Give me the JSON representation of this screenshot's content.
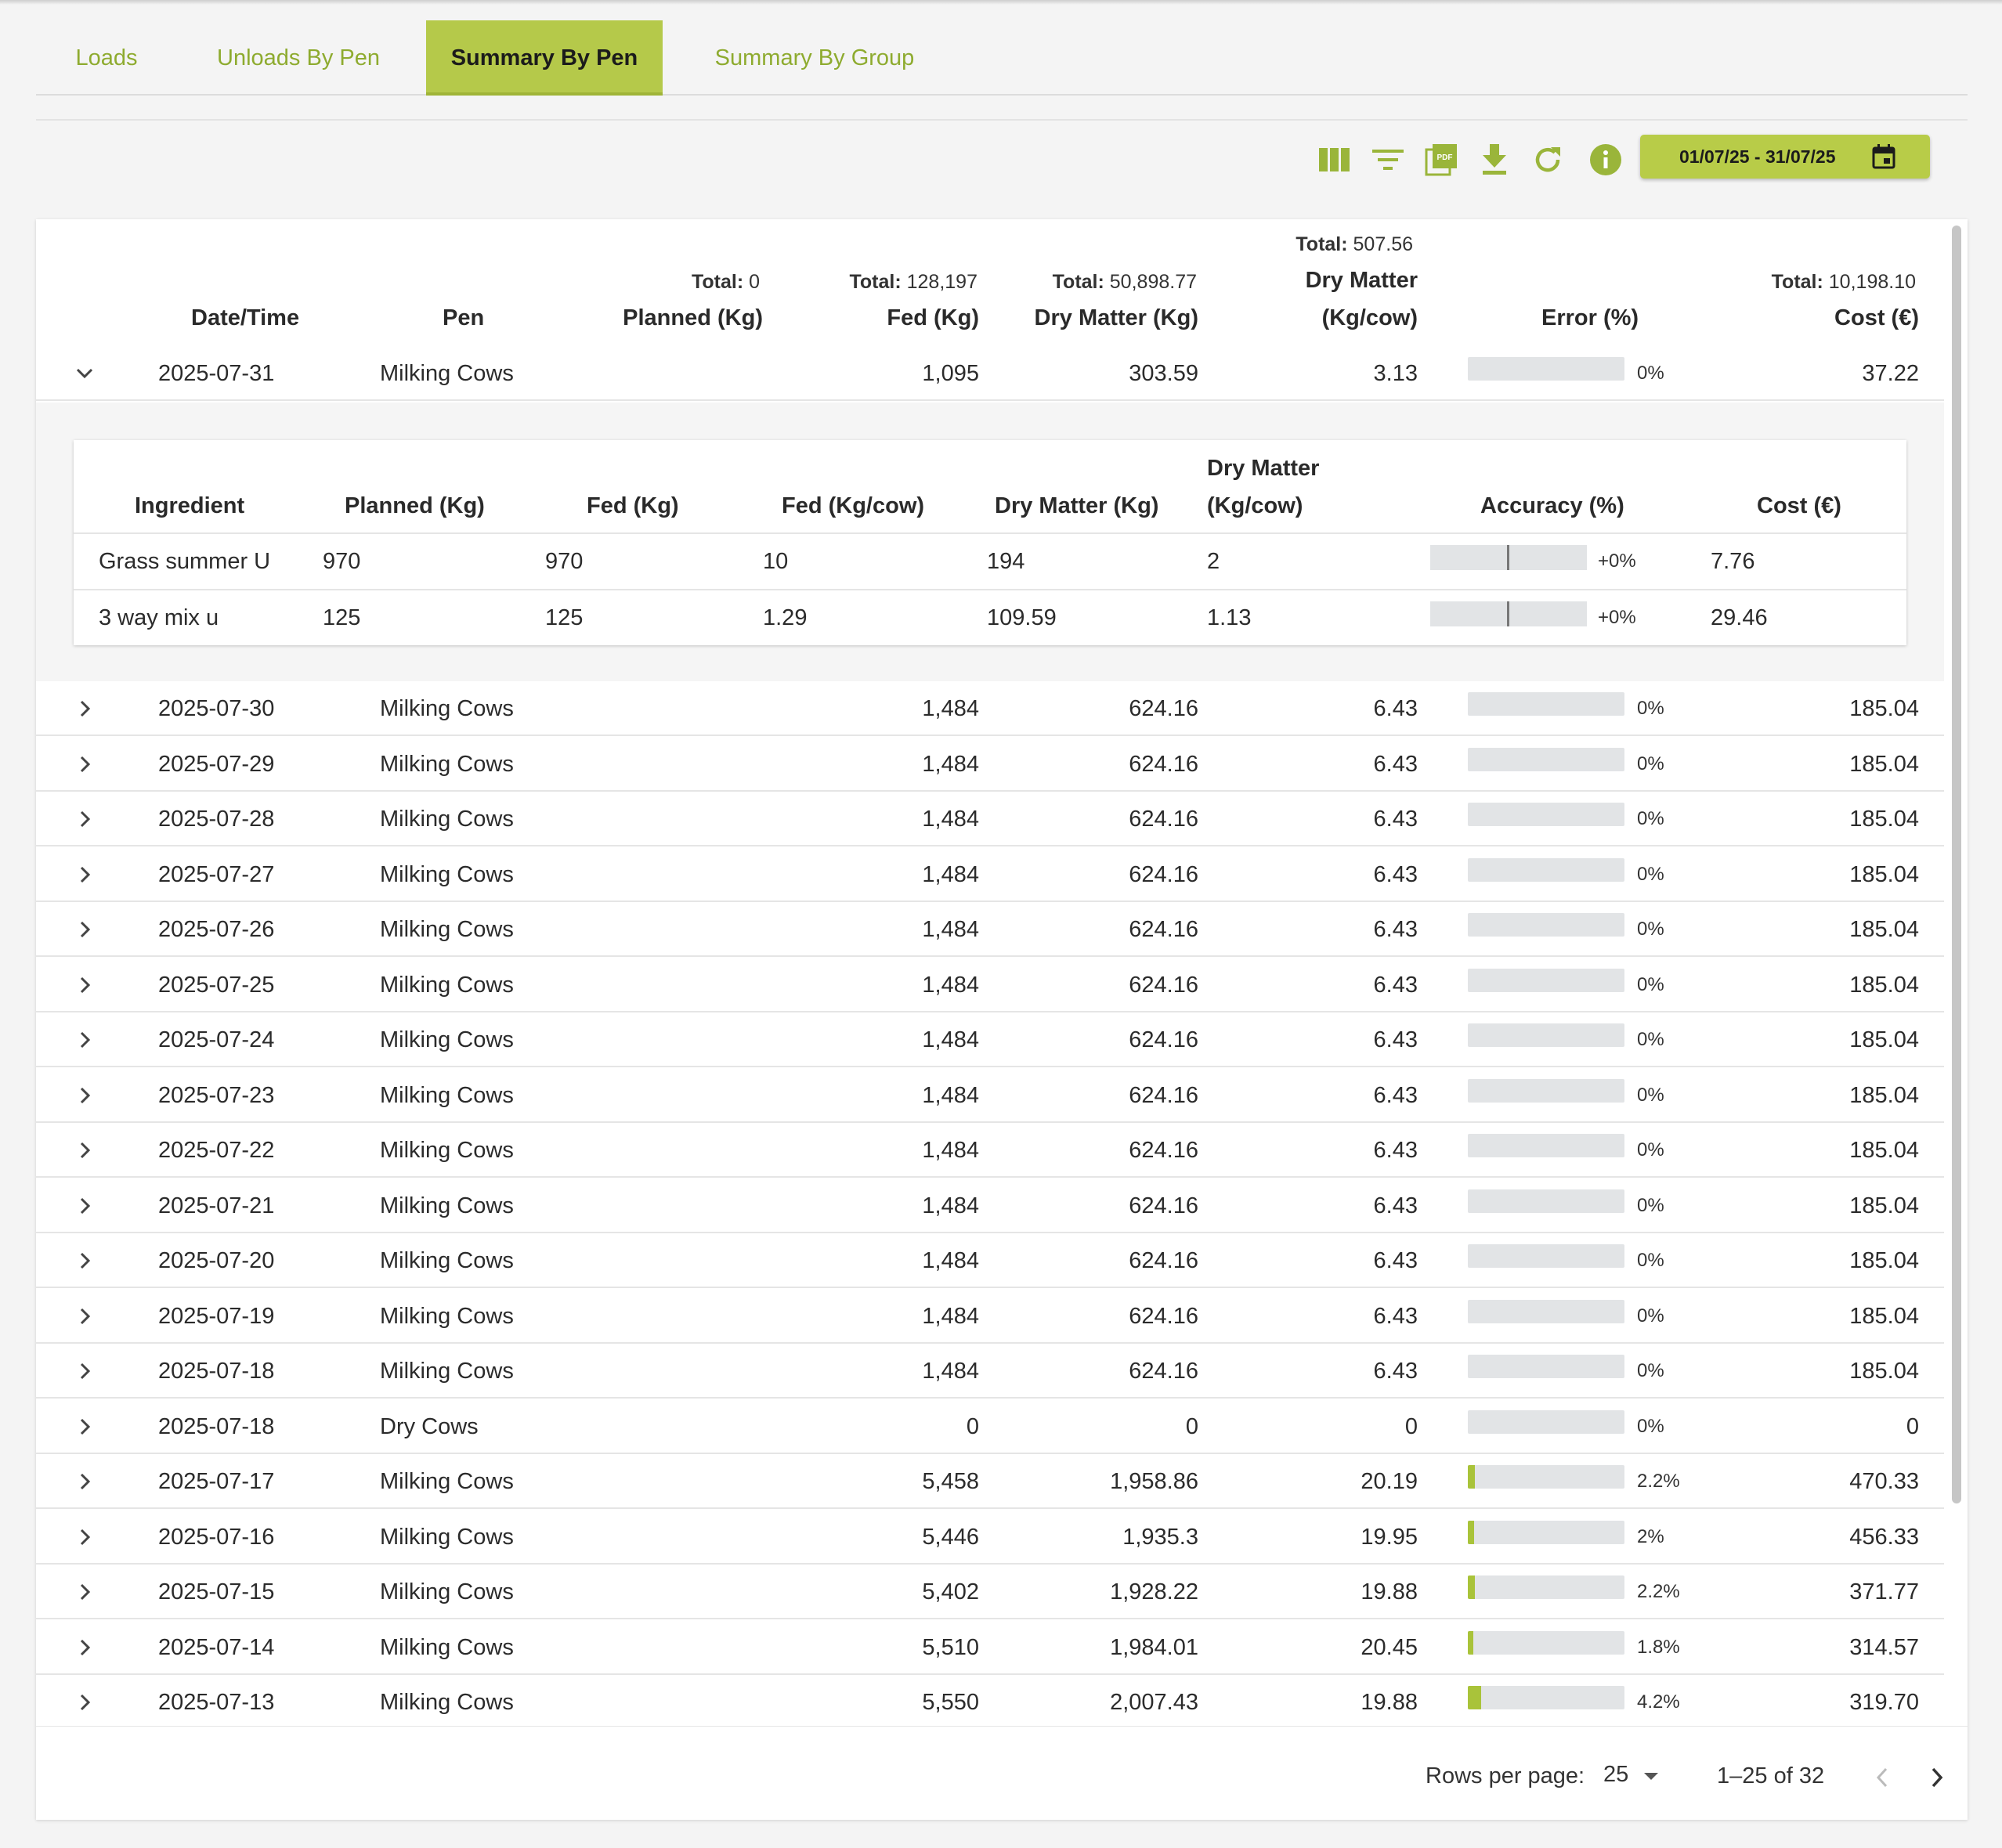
{
  "tabs": [
    {
      "label": "Loads",
      "active": false
    },
    {
      "label": "Unloads By Pen",
      "active": false
    },
    {
      "label": "Summary By Pen",
      "active": true
    },
    {
      "label": "Summary By Group",
      "active": false
    }
  ],
  "toolbar": {
    "icons": [
      "columns-icon",
      "filter-icon",
      "pdf-icon",
      "download-icon",
      "refresh-icon",
      "info-icon"
    ],
    "date_range": "01/07/25 - 31/07/25",
    "accent": "#b8cc48"
  },
  "table": {
    "headers": {
      "datetime": "Date/Time",
      "pen": "Pen",
      "planned": "Planned (Kg)",
      "fed": "Fed (Kg)",
      "dry_matter": "Dry Matter (Kg)",
      "dm_cow_1": "Dry Matter",
      "dm_cow_2": "(Kg/cow)",
      "error": "Error (%)",
      "cost": "Cost (€)"
    },
    "totals": {
      "label": "Total:",
      "planned": "0",
      "fed": "128,197",
      "dry_matter": "50,898.77",
      "dm_cow": "507.56",
      "cost": "10,198.10"
    },
    "expanded_row": {
      "date": "2025-07-31",
      "pen": "Milking Cows",
      "fed": "1,095",
      "dry_matter": "303.59",
      "dm_cow": "3.13",
      "error": "0%",
      "error_fill": 0,
      "cost": "37.22"
    },
    "detail": {
      "headers": {
        "ingredient": "Ingredient",
        "planned": "Planned (Kg)",
        "fed": "Fed (Kg)",
        "fed_cow": "Fed (Kg/cow)",
        "dry_matter": "Dry Matter (Kg)",
        "dm_cow_1": "Dry Matter",
        "dm_cow_2": "(Kg/cow)",
        "accuracy": "Accuracy (%)",
        "cost": "Cost (€)"
      },
      "rows": [
        {
          "ingredient": "Grass summer U",
          "planned": "970",
          "fed": "970",
          "fed_cow": "10",
          "dry_matter": "194",
          "dm_cow": "2",
          "accuracy": "+0%",
          "cost": "7.76"
        },
        {
          "ingredient": "3 way mix u",
          "planned": "125",
          "fed": "125",
          "fed_cow": "1.29",
          "dry_matter": "109.59",
          "dm_cow": "1.13",
          "accuracy": "+0%",
          "cost": "29.46"
        }
      ]
    },
    "rows": [
      {
        "date": "2025-07-30",
        "pen": "Milking Cows",
        "fed": "1,484",
        "dry_matter": "624.16",
        "dm_cow": "6.43",
        "error": "0%",
        "error_fill": 0,
        "cost": "185.04"
      },
      {
        "date": "2025-07-29",
        "pen": "Milking Cows",
        "fed": "1,484",
        "dry_matter": "624.16",
        "dm_cow": "6.43",
        "error": "0%",
        "error_fill": 0,
        "cost": "185.04"
      },
      {
        "date": "2025-07-28",
        "pen": "Milking Cows",
        "fed": "1,484",
        "dry_matter": "624.16",
        "dm_cow": "6.43",
        "error": "0%",
        "error_fill": 0,
        "cost": "185.04"
      },
      {
        "date": "2025-07-27",
        "pen": "Milking Cows",
        "fed": "1,484",
        "dry_matter": "624.16",
        "dm_cow": "6.43",
        "error": "0%",
        "error_fill": 0,
        "cost": "185.04"
      },
      {
        "date": "2025-07-26",
        "pen": "Milking Cows",
        "fed": "1,484",
        "dry_matter": "624.16",
        "dm_cow": "6.43",
        "error": "0%",
        "error_fill": 0,
        "cost": "185.04"
      },
      {
        "date": "2025-07-25",
        "pen": "Milking Cows",
        "fed": "1,484",
        "dry_matter": "624.16",
        "dm_cow": "6.43",
        "error": "0%",
        "error_fill": 0,
        "cost": "185.04"
      },
      {
        "date": "2025-07-24",
        "pen": "Milking Cows",
        "fed": "1,484",
        "dry_matter": "624.16",
        "dm_cow": "6.43",
        "error": "0%",
        "error_fill": 0,
        "cost": "185.04"
      },
      {
        "date": "2025-07-23",
        "pen": "Milking Cows",
        "fed": "1,484",
        "dry_matter": "624.16",
        "dm_cow": "6.43",
        "error": "0%",
        "error_fill": 0,
        "cost": "185.04"
      },
      {
        "date": "2025-07-22",
        "pen": "Milking Cows",
        "fed": "1,484",
        "dry_matter": "624.16",
        "dm_cow": "6.43",
        "error": "0%",
        "error_fill": 0,
        "cost": "185.04"
      },
      {
        "date": "2025-07-21",
        "pen": "Milking Cows",
        "fed": "1,484",
        "dry_matter": "624.16",
        "dm_cow": "6.43",
        "error": "0%",
        "error_fill": 0,
        "cost": "185.04"
      },
      {
        "date": "2025-07-20",
        "pen": "Milking Cows",
        "fed": "1,484",
        "dry_matter": "624.16",
        "dm_cow": "6.43",
        "error": "0%",
        "error_fill": 0,
        "cost": "185.04"
      },
      {
        "date": "2025-07-19",
        "pen": "Milking Cows",
        "fed": "1,484",
        "dry_matter": "624.16",
        "dm_cow": "6.43",
        "error": "0%",
        "error_fill": 0,
        "cost": "185.04"
      },
      {
        "date": "2025-07-18",
        "pen": "Milking Cows",
        "fed": "1,484",
        "dry_matter": "624.16",
        "dm_cow": "6.43",
        "error": "0%",
        "error_fill": 0,
        "cost": "185.04"
      },
      {
        "date": "2025-07-18",
        "pen": "Dry Cows",
        "fed": "0",
        "dry_matter": "0",
        "dm_cow": "0",
        "error": "0%",
        "error_fill": 0,
        "cost": "0"
      },
      {
        "date": "2025-07-17",
        "pen": "Milking Cows",
        "fed": "5,458",
        "dry_matter": "1,958.86",
        "dm_cow": "20.19",
        "error": "2.2%",
        "error_fill": 0.022,
        "cost": "470.33"
      },
      {
        "date": "2025-07-16",
        "pen": "Milking Cows",
        "fed": "5,446",
        "dry_matter": "1,935.3",
        "dm_cow": "19.95",
        "error": "2%",
        "error_fill": 0.02,
        "cost": "456.33"
      },
      {
        "date": "2025-07-15",
        "pen": "Milking Cows",
        "fed": "5,402",
        "dry_matter": "1,928.22",
        "dm_cow": "19.88",
        "error": "2.2%",
        "error_fill": 0.022,
        "cost": "371.77"
      },
      {
        "date": "2025-07-14",
        "pen": "Milking Cows",
        "fed": "5,510",
        "dry_matter": "1,984.01",
        "dm_cow": "20.45",
        "error": "1.8%",
        "error_fill": 0.018,
        "cost": "314.57"
      },
      {
        "date": "2025-07-13",
        "pen": "Milking Cows",
        "fed": "5,550",
        "dry_matter": "2,007.43",
        "dm_cow": "19.88",
        "error": "4.2%",
        "error_fill": 0.042,
        "cost": "319.70"
      }
    ]
  },
  "pagination": {
    "rows_per_page_label": "Rows per page:",
    "rows_per_page": "25",
    "range": "1–25 of 32"
  }
}
